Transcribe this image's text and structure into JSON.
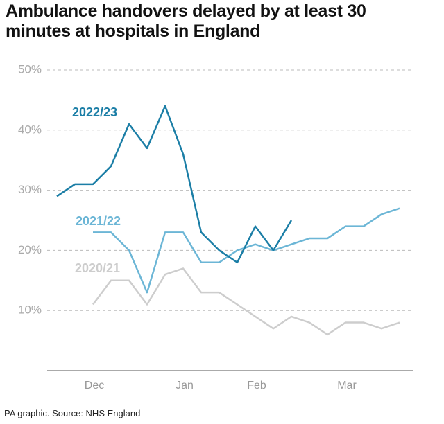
{
  "chart_data": {
    "type": "line",
    "title": "Ambulance handovers delayed by at least 30 minutes at hospitals in England",
    "source": "PA graphic. Source: NHS England",
    "categories": [
      null,
      null,
      "Dec",
      null,
      null,
      null,
      null,
      "Jan",
      null,
      null,
      null,
      "Feb",
      null,
      null,
      null,
      null,
      "Mar",
      null,
      null,
      null
    ],
    "ylim": [
      0,
      50
    ],
    "yticks": [
      {
        "value": 10,
        "label": "10%"
      },
      {
        "value": 20,
        "label": "20%"
      },
      {
        "value": 30,
        "label": "30%"
      },
      {
        "value": 40,
        "label": "40%"
      },
      {
        "value": 50,
        "label": "50%"
      }
    ],
    "grid": true,
    "series": [
      {
        "name": "2022/23",
        "color": "#1b7ea6",
        "values": [
          29,
          31,
          31,
          34,
          41,
          37,
          44,
          36,
          23,
          20,
          18,
          24,
          20,
          25,
          null,
          null,
          null,
          null,
          null,
          null
        ]
      },
      {
        "name": "2021/22",
        "color": "#6cb6d6",
        "values": [
          null,
          null,
          23,
          23,
          20,
          13,
          23,
          23,
          18,
          18,
          20,
          21,
          20,
          21,
          22,
          22,
          24,
          24,
          26,
          27
        ]
      },
      {
        "name": "2020/21",
        "color": "#cdcdcd",
        "values": [
          null,
          null,
          11,
          15,
          15,
          11,
          16,
          17,
          13,
          13,
          11,
          9,
          7,
          9,
          8,
          6,
          8,
          8,
          7,
          8
        ]
      }
    ]
  }
}
